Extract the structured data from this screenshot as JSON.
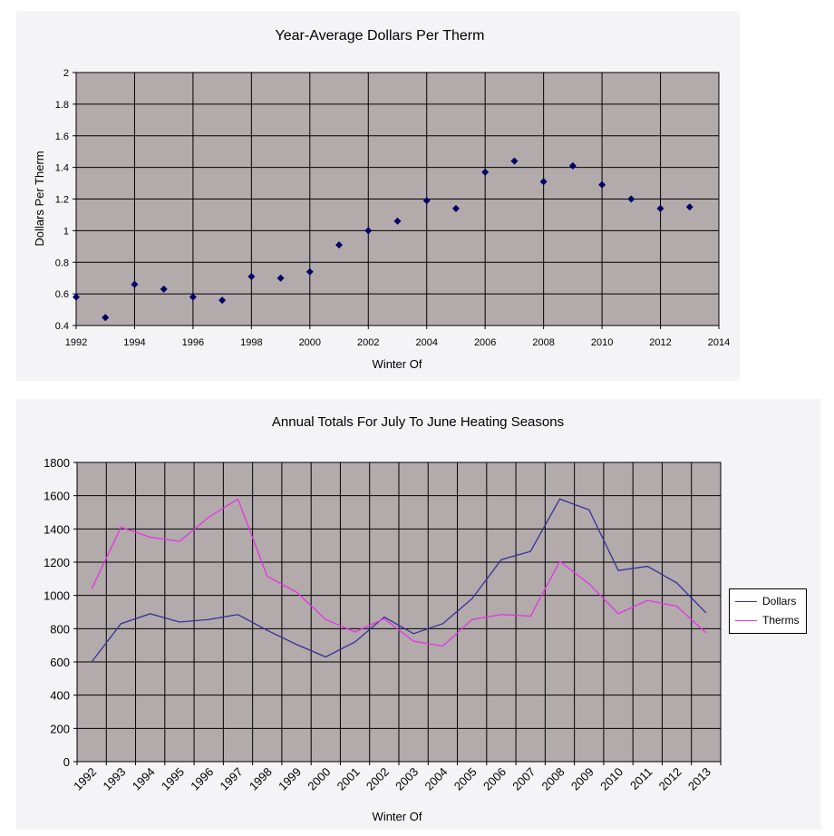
{
  "chart_data": [
    {
      "type": "scatter",
      "title": "Year-Average Dollars Per Therm",
      "xlabel": "Winter Of",
      "ylabel": "Dollars Per Therm",
      "xlim": [
        1992,
        2014
      ],
      "ylim": [
        0.4,
        2
      ],
      "xticks": [
        1992,
        1994,
        1996,
        1998,
        2000,
        2002,
        2004,
        2006,
        2008,
        2010,
        2012,
        2014
      ],
      "yticks": [
        0.4,
        0.6,
        0.8,
        1,
        1.2,
        1.4,
        1.6,
        1.8,
        2
      ],
      "marker_color": "#000066",
      "background_color": "#b3aaab",
      "x": [
        1992,
        1993,
        1994,
        1995,
        1996,
        1997,
        1998,
        1999,
        2000,
        2001,
        2002,
        2003,
        2004,
        2005,
        2006,
        2007,
        2008,
        2009,
        2010,
        2011,
        2012,
        2013
      ],
      "y": [
        0.58,
        0.45,
        0.66,
        0.63,
        0.58,
        0.56,
        0.71,
        0.7,
        0.74,
        0.91,
        1.0,
        1.06,
        1.19,
        1.14,
        1.37,
        1.44,
        1.31,
        1.41,
        1.29,
        1.2,
        1.14,
        1.15
      ]
    },
    {
      "type": "line",
      "title": "Annual Totals For July To June Heating Seasons",
      "xlabel": "Winter Of",
      "ylabel": "",
      "ylim": [
        0,
        1800
      ],
      "yticks": [
        0,
        200,
        400,
        600,
        800,
        1000,
        1200,
        1400,
        1600,
        1800
      ],
      "categories": [
        "1992",
        "1993",
        "1994",
        "1995",
        "1996",
        "1997",
        "1998",
        "1999",
        "2000",
        "2001",
        "2002",
        "2003",
        "2004",
        "2005",
        "2006",
        "2007",
        "2008",
        "2009",
        "2010",
        "2011",
        "2012",
        "2013"
      ],
      "background_color": "#b3aaab",
      "legend_position": "right",
      "series": [
        {
          "name": "Dollars",
          "color": "#333399",
          "values": [
            600,
            830,
            890,
            840,
            855,
            885,
            790,
            705,
            630,
            720,
            870,
            770,
            830,
            980,
            1215,
            1265,
            1580,
            1515,
            1150,
            1175,
            1075,
            895
          ]
        },
        {
          "name": "Therms",
          "color": "#e633e6",
          "values": [
            1040,
            1410,
            1350,
            1325,
            1470,
            1580,
            1115,
            1020,
            855,
            780,
            860,
            725,
            695,
            855,
            885,
            875,
            1205,
            1070,
            890,
            970,
            935,
            775
          ]
        }
      ]
    }
  ]
}
